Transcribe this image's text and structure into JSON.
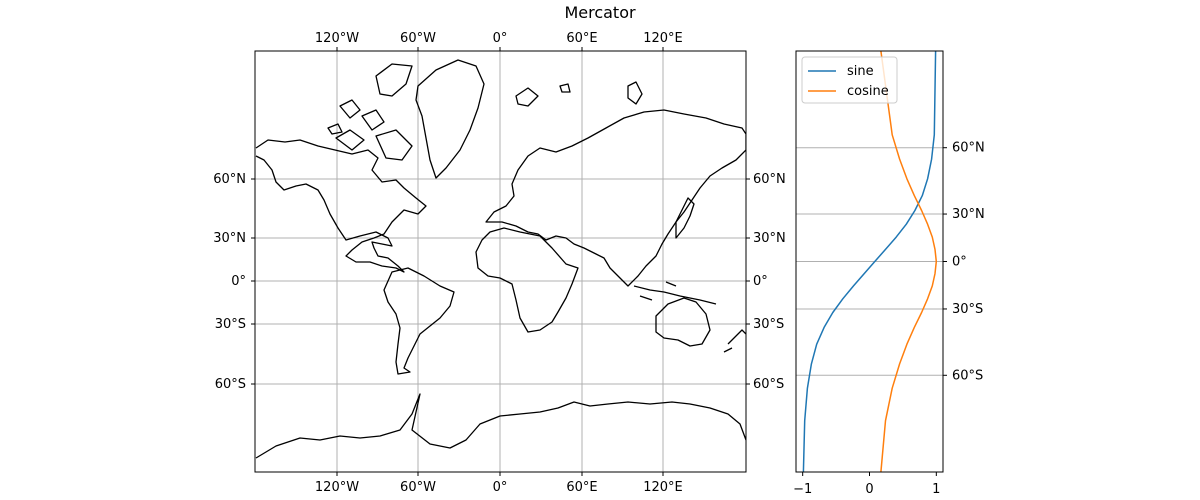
{
  "title": "Mercator",
  "colors": {
    "sine": "#1f77b4",
    "cosine": "#ff7f0e",
    "grid": "#b0b0b0",
    "coast": "#000000"
  },
  "map": {
    "projection": "mercator",
    "lon_ticks": [
      "120°W",
      "60°W",
      "0°",
      "60°E",
      "120°E"
    ],
    "lat_ticks": [
      "60°N",
      "30°N",
      "0°",
      "30°S",
      "60°S"
    ]
  },
  "chart_data": [
    {
      "type": "map",
      "title": "Mercator",
      "projection": "mercator",
      "xlim": [
        -180,
        180
      ],
      "ylim": [
        -80,
        80
      ],
      "x_ticks": [
        -120,
        -60,
        0,
        60,
        120
      ],
      "y_ticks": [
        60,
        30,
        0,
        -30,
        -60
      ],
      "grid": true
    },
    {
      "type": "line",
      "x_ticks": [
        -1,
        0,
        1
      ],
      "x_tick_labels": [
        "−1",
        "0",
        "1"
      ],
      "xlim": [
        -1.1,
        1.1
      ],
      "ylim": [
        -80,
        80
      ],
      "y_ticks": [
        60,
        30,
        0,
        -30,
        -60
      ],
      "y_tick_labels": [
        "60°N",
        "30°N",
        "0°",
        "30°S",
        "60°S"
      ],
      "grid": true,
      "legend": "top-left",
      "series": [
        {
          "name": "sine",
          "color": "#1f77b4",
          "x": [
            -0.99,
            -0.97,
            -0.93,
            -0.87,
            -0.79,
            -0.68,
            -0.55,
            -0.4,
            -0.24,
            -0.08,
            0.08,
            0.24,
            0.4,
            0.55,
            0.68,
            0.79,
            0.87,
            0.93,
            0.97,
            0.99
          ],
          "y": [
            -80,
            -72,
            -64,
            -56,
            -48,
            -40,
            -32,
            -24,
            -16,
            -8,
            0,
            8,
            16,
            24,
            32,
            40,
            48,
            56,
            64,
            80
          ]
        },
        {
          "name": "cosine",
          "color": "#ff7f0e",
          "x": [
            0.17,
            0.24,
            0.34,
            0.45,
            0.56,
            0.67,
            0.78,
            0.87,
            0.94,
            0.98,
            1.0,
            0.98,
            0.94,
            0.87,
            0.78,
            0.67,
            0.56,
            0.45,
            0.34,
            0.17
          ],
          "y": [
            -80,
            -72,
            -64,
            -56,
            -48,
            -40,
            -32,
            -24,
            -16,
            -8,
            0,
            8,
            16,
            24,
            32,
            40,
            48,
            56,
            64,
            80
          ]
        }
      ]
    }
  ]
}
